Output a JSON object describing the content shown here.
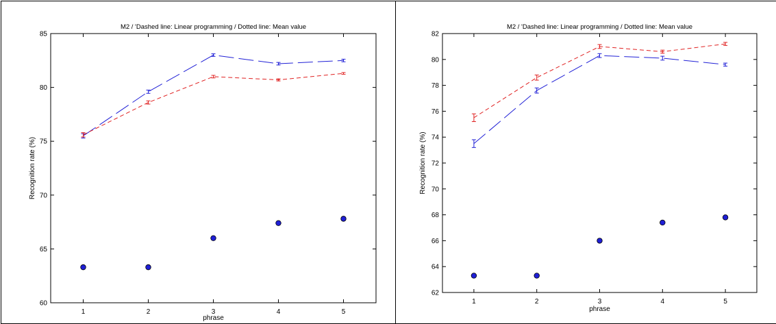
{
  "figure": {
    "colors": {
      "series_blue": "#1f1fd6",
      "series_red": "#e02020",
      "marker_fill": "#1f1fd6",
      "axis": "#000000"
    }
  },
  "chart_data": [
    {
      "type": "line",
      "title": "M2 / 'Dashed line: Linear programming / Dotted line: Mean value",
      "xlabel": "phrase",
      "ylabel": "Recognition rate (%)",
      "x": [
        1,
        2,
        3,
        4,
        5
      ],
      "xlim": [
        0.5,
        5.5
      ],
      "ylim": [
        60,
        85
      ],
      "xticks": [
        "1",
        "2",
        "3",
        "4",
        "5"
      ],
      "yticks": [
        "60",
        "65",
        "70",
        "75",
        "80",
        "85"
      ],
      "grid": false,
      "series": [
        {
          "values": [
            75.5,
            79.6,
            83.0,
            82.2,
            82.5
          ],
          "errors": [
            0.2,
            0.15,
            0.12,
            0.12,
            0.12
          ],
          "style": "long-dash",
          "color": "#1f1fd6"
        },
        {
          "values": [
            75.6,
            78.6,
            81.0,
            80.7,
            81.3
          ],
          "errors": [
            0.2,
            0.15,
            0.12,
            0.1,
            0.08
          ],
          "style": "short-dash",
          "color": "#e02020"
        },
        {
          "values": [
            63.3,
            63.3,
            66.0,
            67.4,
            67.8
          ],
          "style": "markers",
          "color": "#1f1fd6"
        }
      ]
    },
    {
      "type": "line",
      "title": "M2 / 'Dashed line: Linear programming / Dotted line: Mean value",
      "xlabel": "phrase",
      "ylabel": "Recognition rate (%)",
      "x": [
        1,
        2,
        3,
        4,
        5
      ],
      "xlim": [
        0.5,
        5.5
      ],
      "ylim": [
        62,
        82
      ],
      "xticks": [
        "1",
        "2",
        "3",
        "4",
        "5"
      ],
      "yticks": [
        "62",
        "64",
        "66",
        "68",
        "70",
        "72",
        "74",
        "76",
        "78",
        "80",
        "82"
      ],
      "grid": false,
      "series": [
        {
          "values": [
            73.5,
            77.6,
            80.3,
            80.1,
            79.6
          ],
          "errors": [
            0.3,
            0.2,
            0.15,
            0.15,
            0.12
          ],
          "style": "long-dash",
          "color": "#1f1fd6"
        },
        {
          "values": [
            75.5,
            78.6,
            81.0,
            80.6,
            81.2
          ],
          "errors": [
            0.3,
            0.2,
            0.15,
            0.12,
            0.12
          ],
          "style": "short-dash",
          "color": "#e02020"
        },
        {
          "values": [
            63.3,
            63.3,
            66.0,
            67.4,
            67.8
          ],
          "style": "markers",
          "color": "#1f1fd6"
        }
      ]
    }
  ]
}
